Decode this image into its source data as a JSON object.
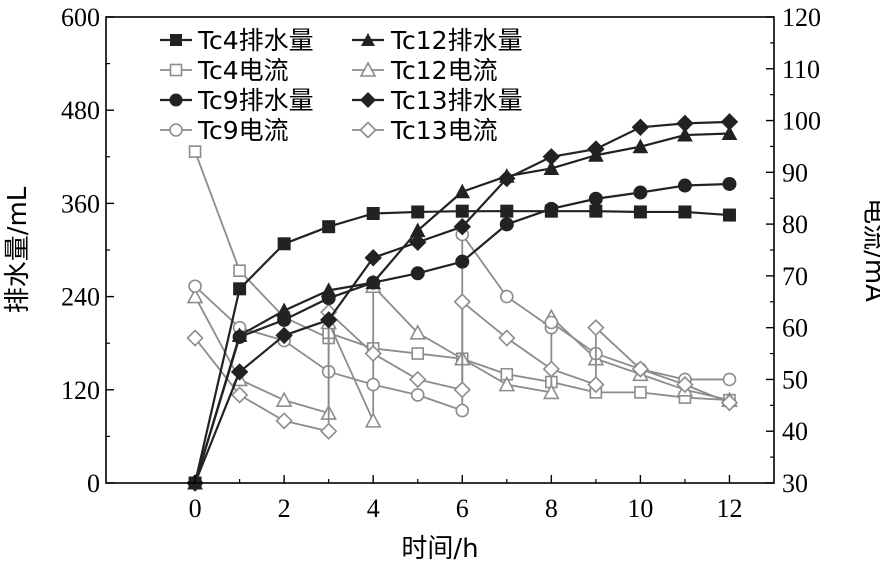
{
  "chart_data": {
    "type": "line",
    "xlabel": "时间/h",
    "ylabel_left": "排水量/mL",
    "ylabel_right": "电流/mA",
    "x_ticks": [
      0,
      2,
      4,
      6,
      8,
      10,
      12
    ],
    "xlim": [
      -2,
      13
    ],
    "ylim_left": [
      0,
      600
    ],
    "ylim_right": [
      30,
      120
    ],
    "y_ticks_left": [
      0,
      120,
      240,
      360,
      480,
      600
    ],
    "y_ticks_right": [
      30,
      40,
      50,
      60,
      70,
      80,
      90,
      100,
      110,
      120
    ],
    "legend_position": "top-left",
    "colors": {
      "drainage_line": "#222222",
      "current_line": "#8c8c8c",
      "hollow_fill": "#ffffff"
    },
    "series": [
      {
        "name": "Tc4排水量",
        "axis": "left",
        "marker": "square",
        "filled": true,
        "points": [
          [
            0,
            0
          ],
          [
            1,
            250
          ],
          [
            2,
            308
          ],
          [
            3,
            330
          ],
          [
            4,
            347
          ],
          [
            5,
            349
          ],
          [
            6,
            350
          ],
          [
            7,
            350
          ],
          [
            8,
            350
          ],
          [
            9,
            350
          ],
          [
            10,
            349
          ],
          [
            11,
            349
          ],
          [
            12,
            345
          ]
        ]
      },
      {
        "name": "Tc12排水量",
        "axis": "left",
        "marker": "triangle",
        "filled": true,
        "points": [
          [
            0,
            0
          ],
          [
            1,
            190
          ],
          [
            2,
            222
          ],
          [
            3,
            248
          ],
          [
            4,
            258
          ],
          [
            5,
            325
          ],
          [
            6,
            375
          ],
          [
            7,
            395
          ],
          [
            8,
            405
          ],
          [
            9,
            422
          ],
          [
            10,
            433
          ],
          [
            11,
            448
          ],
          [
            12,
            450
          ]
        ]
      },
      {
        "name": "Tc9排水量",
        "axis": "left",
        "marker": "circle",
        "filled": true,
        "points": [
          [
            0,
            0
          ],
          [
            1,
            188
          ],
          [
            2,
            210
          ],
          [
            3,
            238
          ],
          [
            4,
            258
          ],
          [
            5,
            270
          ],
          [
            6,
            285
          ],
          [
            7,
            333
          ],
          [
            8,
            353
          ],
          [
            9,
            366
          ],
          [
            10,
            374
          ],
          [
            11,
            383
          ],
          [
            12,
            385
          ]
        ]
      },
      {
        "name": "Tc13排水量",
        "axis": "left",
        "marker": "diamond",
        "filled": true,
        "points": [
          [
            0,
            0
          ],
          [
            1,
            143
          ],
          [
            2,
            190
          ],
          [
            3,
            210
          ],
          [
            4,
            290
          ],
          [
            5,
            310
          ],
          [
            6,
            330
          ],
          [
            7,
            392
          ],
          [
            8,
            420
          ],
          [
            9,
            430
          ],
          [
            10,
            458
          ],
          [
            11,
            463
          ],
          [
            12,
            465
          ]
        ]
      },
      {
        "name": "Tc4电流",
        "axis": "right",
        "marker": "square",
        "filled": false,
        "points": [
          [
            0,
            94
          ],
          [
            1,
            71
          ],
          [
            2,
            62
          ],
          [
            3,
            58
          ],
          [
            3,
            59
          ],
          [
            4,
            56
          ],
          [
            5,
            55
          ],
          [
            6,
            54
          ],
          [
            7,
            51
          ],
          [
            8,
            49.5
          ],
          [
            9,
            47.5
          ],
          [
            10,
            47.5
          ],
          [
            11,
            46.5
          ],
          [
            12,
            46
          ]
        ]
      },
      {
        "name": "Tc12电流",
        "axis": "right",
        "marker": "triangle",
        "filled": false,
        "points": [
          [
            0,
            66
          ],
          [
            1,
            50
          ],
          [
            2,
            46
          ],
          [
            3,
            43.5
          ],
          [
            3,
            61
          ],
          [
            4,
            42
          ],
          [
            4,
            68
          ],
          [
            5,
            59
          ],
          [
            6,
            54
          ],
          [
            7,
            49
          ],
          [
            8,
            47.5
          ],
          [
            8,
            62
          ],
          [
            9,
            54
          ],
          [
            10,
            51
          ],
          [
            11,
            48
          ],
          [
            12,
            46
          ]
        ]
      },
      {
        "name": "Tc9电流",
        "axis": "right",
        "marker": "circle",
        "filled": false,
        "points": [
          [
            0,
            68
          ],
          [
            1,
            60
          ],
          [
            2,
            57.5
          ],
          [
            3,
            51.5
          ],
          [
            4,
            49
          ],
          [
            5,
            47
          ],
          [
            6,
            44
          ],
          [
            6,
            78
          ],
          [
            7,
            66
          ],
          [
            8,
            60
          ],
          [
            8,
            61
          ],
          [
            9,
            55
          ],
          [
            10,
            52
          ],
          [
            11,
            50
          ],
          [
            12,
            50
          ]
        ]
      },
      {
        "name": "Tc13电流",
        "axis": "right",
        "marker": "diamond",
        "filled": false,
        "points": [
          [
            0,
            58
          ],
          [
            1,
            47
          ],
          [
            2,
            42
          ],
          [
            3,
            40
          ],
          [
            3,
            63
          ],
          [
            4,
            55
          ],
          [
            5,
            50
          ],
          [
            6,
            48
          ],
          [
            6,
            65
          ],
          [
            7,
            58
          ],
          [
            8,
            52
          ],
          [
            9,
            49
          ],
          [
            9,
            60
          ],
          [
            10,
            52
          ],
          [
            11,
            49
          ],
          [
            12,
            45.5
          ]
        ]
      }
    ]
  }
}
